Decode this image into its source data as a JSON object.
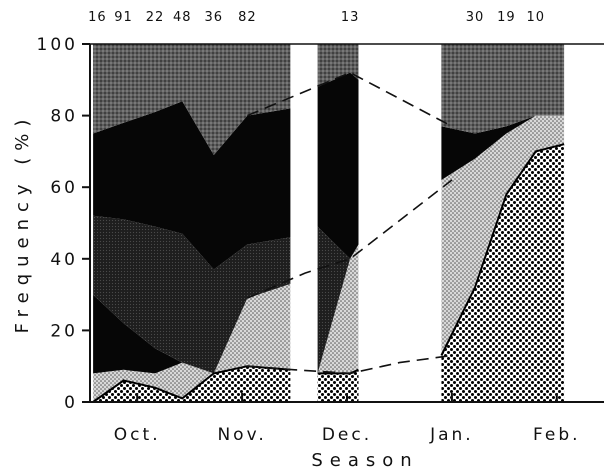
{
  "chart_data": {
    "type": "area",
    "title": "",
    "xlabel": "Season",
    "ylabel": "Frequency (%)",
    "ylim": [
      0,
      100
    ],
    "y_ticks": [
      "0",
      "20",
      "40",
      "60",
      "80",
      "100"
    ],
    "x_ticks": [
      "Oct.",
      "Nov.",
      "Dec.",
      "Jan.",
      "Feb."
    ],
    "x_tick_positions": [
      1.0,
      2.0,
      3.0,
      4.0,
      5.0
    ],
    "xlim": [
      0.55,
      5.45
    ],
    "sample_sizes": [
      {
        "x": 0.62,
        "label": "16"
      },
      {
        "x": 0.87,
        "label": "91"
      },
      {
        "x": 1.17,
        "label": "22"
      },
      {
        "x": 1.43,
        "label": "48"
      },
      {
        "x": 1.73,
        "label": "36"
      },
      {
        "x": 2.05,
        "label": "82"
      },
      {
        "x": 3.03,
        "label": "13"
      },
      {
        "x": 4.22,
        "label": "30"
      },
      {
        "x": 4.52,
        "label": "19"
      },
      {
        "x": 4.8,
        "label": "10"
      }
    ],
    "gaps": [
      [
        2.48,
        2.71
      ],
      [
        3.12,
        3.88
      ]
    ],
    "segments": [
      {
        "x": [
          0.58,
          0.87,
          1.17,
          1.43,
          1.73,
          2.05,
          2.46
        ]
      },
      {
        "x": [
          2.72,
          3.03,
          3.11
        ]
      },
      {
        "x": [
          3.9,
          4.22,
          4.52,
          4.8,
          5.07
        ]
      }
    ],
    "series": [
      {
        "pattern": "dense-dots",
        "values": [
          [
            0,
            6,
            4,
            1,
            8,
            10,
            9
          ],
          [
            8,
            8,
            9
          ],
          [
            13,
            32,
            58,
            70,
            72
          ]
        ]
      },
      {
        "pattern": "light-stipple",
        "values": [
          [
            8,
            9,
            8,
            11,
            8,
            29,
            33
          ],
          [
            8,
            40,
            44
          ],
          [
            62,
            68,
            75,
            80,
            80
          ]
        ]
      },
      {
        "pattern": "black",
        "values": [
          [
            30,
            22,
            15,
            11,
            8,
            29,
            33
          ],
          [
            8,
            40,
            44
          ],
          [
            62,
            68,
            75,
            80,
            80
          ]
        ]
      },
      {
        "pattern": "dark-gray",
        "values": [
          [
            52,
            51,
            49,
            47,
            37,
            44,
            46
          ],
          [
            49,
            40,
            44
          ],
          [
            62,
            68,
            75,
            80,
            80
          ]
        ]
      },
      {
        "pattern": "black",
        "values": [
          [
            75,
            78,
            81,
            84,
            69,
            80,
            82
          ],
          [
            88,
            92,
            90
          ],
          [
            77,
            75,
            77,
            80,
            80
          ]
        ]
      },
      {
        "pattern": "coarse-gray",
        "values": [
          [
            100,
            100,
            100,
            100,
            100,
            100,
            100
          ],
          [
            100,
            100,
            100
          ],
          [
            100,
            100,
            100,
            100,
            100
          ]
        ]
      }
    ],
    "lines": [
      {
        "style": "dashed",
        "points": [
          [
            2.05,
            10
          ],
          [
            2.5,
            9
          ],
          [
            3.03,
            8
          ],
          [
            3.5,
            11
          ],
          [
            4.0,
            13
          ]
        ]
      },
      {
        "style": "dashed",
        "points": [
          [
            2.05,
            29
          ],
          [
            2.6,
            36
          ],
          [
            3.03,
            40
          ],
          [
            4.0,
            62
          ]
        ]
      },
      {
        "style": "dashed",
        "points": [
          [
            2.05,
            80
          ],
          [
            3.03,
            92
          ],
          [
            4.0,
            77
          ]
        ]
      }
    ]
  }
}
